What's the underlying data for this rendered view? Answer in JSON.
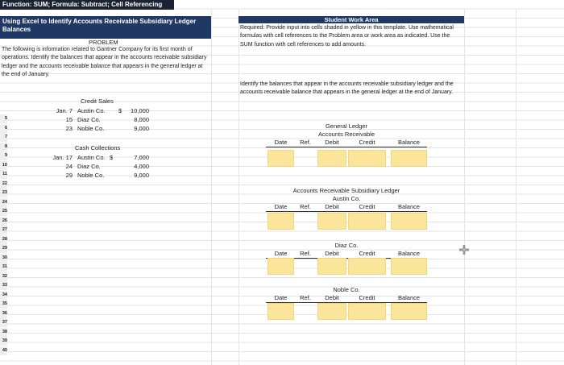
{
  "toolbar": {
    "label": "Function: SUM; Formula: Subtract; Cell Referencing"
  },
  "problem": {
    "title": "Using Excel to Identify Accounts Receivable Subsidiary Ledger Balances",
    "heading": "PROBLEM",
    "text": "The following is information related to Gantner Company for its first month of operations. Identify the balances that appear in the accounts receivable subsidiary ledger and the accounts receivable balance that appears in the general ledger at the end of January.",
    "credit_sales": {
      "title": "Credit Sales",
      "rows": [
        {
          "date": "Jan. 7",
          "customer": "Austin Co.",
          "currency": "$",
          "amount": "10,000"
        },
        {
          "date": "15",
          "customer": "Diaz Co.",
          "amount": "8,000"
        },
        {
          "date": "23",
          "customer": "Noble Co.",
          "amount": "9,000"
        }
      ]
    },
    "cash_collections": {
      "title": "Cash Collections",
      "rows": [
        {
          "date": "Jan. 17",
          "customer": "Austin Co.",
          "currency": "$",
          "amount": "7,000"
        },
        {
          "date": "24",
          "customer": "Diaz Co.",
          "amount": "4,000"
        },
        {
          "date": "29",
          "customer": "Noble Co.",
          "amount": "9,000"
        }
      ]
    }
  },
  "work_area": {
    "title": "Student Work Area",
    "required": "Required: Provide input into cells shaded in yellow in this template. Use mathematical formulas with cell references to the Problem area or work area as indicated. Use the SUM function with cell references to add amounts.",
    "instruction": "Identify the balances that appear in the accounts receivable subsidiary ledger and the accounts receivable balance that appears in the general ledger at the end of January.",
    "ledgers": [
      {
        "title": "General Ledger",
        "account": "Accounts Receivable",
        "columns": [
          "Date",
          "Ref.",
          "Debit",
          "Credit",
          "Balance"
        ]
      },
      {
        "title": "Accounts Receivable Subsidiary Ledger",
        "account": "Austin Co.",
        "columns": [
          "Date",
          "Ref.",
          "Debit",
          "Credit",
          "Balance"
        ]
      },
      {
        "account": "Diaz Co.",
        "columns": [
          "Date",
          "Ref.",
          "Debit",
          "Credit",
          "Balance"
        ]
      },
      {
        "account": "Noble Co.",
        "columns": [
          "Date",
          "Ref.",
          "Debit",
          "Credit",
          "Balance"
        ]
      }
    ]
  },
  "row_numbers": [
    "5",
    "6",
    "7",
    "8",
    "9",
    "10",
    "11",
    "22",
    "23",
    "24",
    "25",
    "26",
    "27",
    "28",
    "29",
    "30",
    "31",
    "32",
    "33",
    "34",
    "35",
    "36",
    "37",
    "38",
    "39",
    "40"
  ]
}
